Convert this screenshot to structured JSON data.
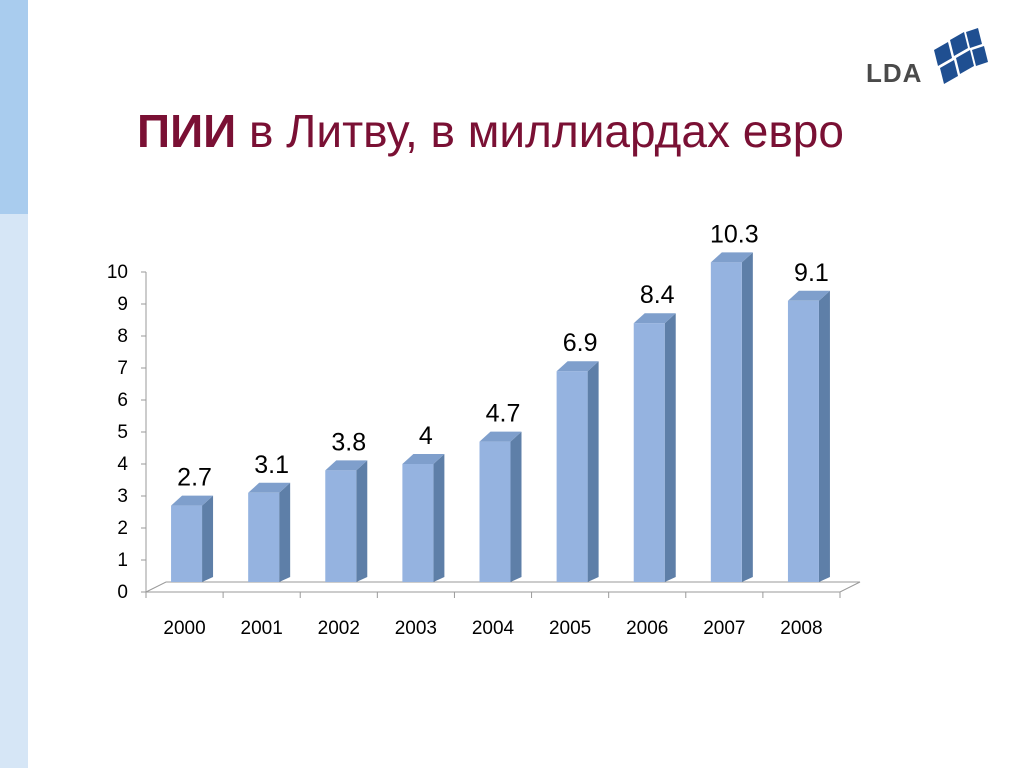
{
  "page": {
    "title_bold": "ПИИ",
    "title_rest": " в Литву, в миллиардах евро",
    "logo_text": "LDA"
  },
  "colors": {
    "title": "#7a1034",
    "bar_front": "#95b3e0",
    "bar_side": "#5e7fa8",
    "bar_top": "#7f9fcc",
    "floor": "#ffffff",
    "sidebar_light": "#d6e6f6",
    "sidebar_dark": "#a9ccee",
    "logo_mark": "#1f4f91"
  },
  "chart_data": {
    "type": "bar",
    "categories": [
      "2000",
      "2001",
      "2002",
      "2003",
      "2004",
      "2005",
      "2006",
      "2007",
      "2008"
    ],
    "values": [
      2.7,
      3.1,
      3.8,
      4,
      4.7,
      6.9,
      8.4,
      10.3,
      9.1
    ],
    "data_labels": [
      "2.7",
      "3.1",
      "3.8",
      "4",
      "4.7",
      "6.9",
      "8.4",
      "10.3",
      "9.1"
    ],
    "y_ticks": [
      "0",
      "1",
      "2",
      "3",
      "4",
      "5",
      "6",
      "7",
      "8",
      "9",
      "10"
    ],
    "ylim": [
      0,
      10
    ],
    "grid": false,
    "legend": "none",
    "style": "3d-columns"
  }
}
